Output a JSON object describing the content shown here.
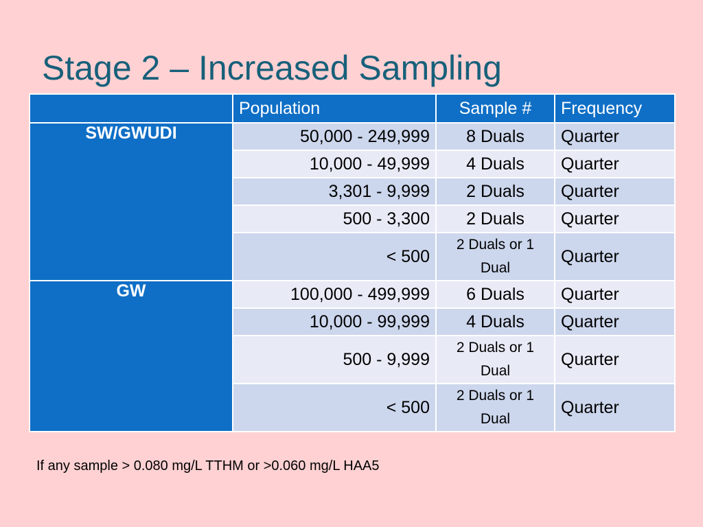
{
  "slide": {
    "title": "Stage 2 – Increased Sampling",
    "footnote": "If any sample > 0.080 mg/L TTHM or >0.060 mg/L HAA5"
  },
  "table": {
    "headers": [
      "",
      "Population",
      "Sample #",
      "Frequency"
    ],
    "groups": [
      {
        "label": "SW/GWUDI",
        "rows": [
          {
            "population": "50,000 - 249,999",
            "sample": "8 Duals",
            "frequency": "Quarter"
          },
          {
            "population": "10,000 - 49,999",
            "sample": "4 Duals",
            "frequency": "Quarter"
          },
          {
            "population": "3,301 - 9,999",
            "sample": "2 Duals",
            "frequency": "Quarter"
          },
          {
            "population": "500 - 3,300",
            "sample": "2 Duals",
            "frequency": "Quarter"
          },
          {
            "population": "< 500",
            "sample": "2 Duals or 1 Dual",
            "frequency": "Quarter"
          }
        ]
      },
      {
        "label": "GW",
        "rows": [
          {
            "population": "100,000 - 499,999",
            "sample": "6 Duals",
            "frequency": "Quarter"
          },
          {
            "population": "10,000 - 99,999",
            "sample": "4 Duals",
            "frequency": "Quarter"
          },
          {
            "population": "500 - 9,999",
            "sample": "2 Duals or 1 Dual",
            "frequency": "Quarter"
          },
          {
            "population": "< 500",
            "sample": "2 Duals or 1 Dual",
            "frequency": "Quarter"
          }
        ]
      }
    ]
  },
  "colors": {
    "background": "#ffd1d3",
    "title": "#17607a",
    "header": "#0f6fc6",
    "row_dark": "#ccd6ec",
    "row_light": "#e8ebf6"
  }
}
